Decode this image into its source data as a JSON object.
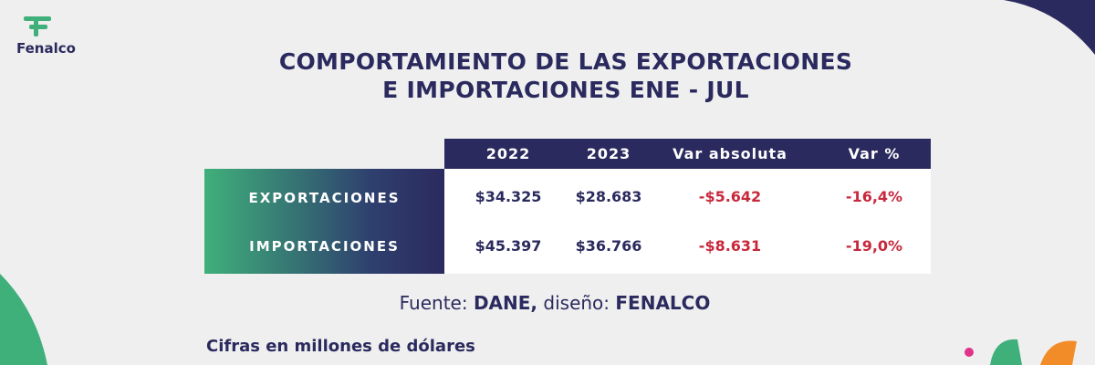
{
  "logo": {
    "text": "Fenalco"
  },
  "header": {
    "title_lines": [
      "COMPORTAMIENTO DE LAS EXPORTACIONES",
      "E IMPORTACIONES ENE - JUL"
    ]
  },
  "table": {
    "columns": [
      "2022",
      "2023",
      "Var absoluta",
      "Var %"
    ],
    "rows": [
      [
        "EXPORTACIONES",
        "$34.325",
        "$28.683",
        "-$5.642",
        "-16,4%"
      ],
      [
        "IMPORTACIONES",
        "$45.397",
        "$36.766",
        "-$8.631",
        "-19,0%"
      ]
    ]
  },
  "source": {
    "parts": [
      "Fuente:",
      "DANE,",
      "diseño:",
      "FENALCO"
    ]
  },
  "note": "Cifras en millones de dólares"
}
